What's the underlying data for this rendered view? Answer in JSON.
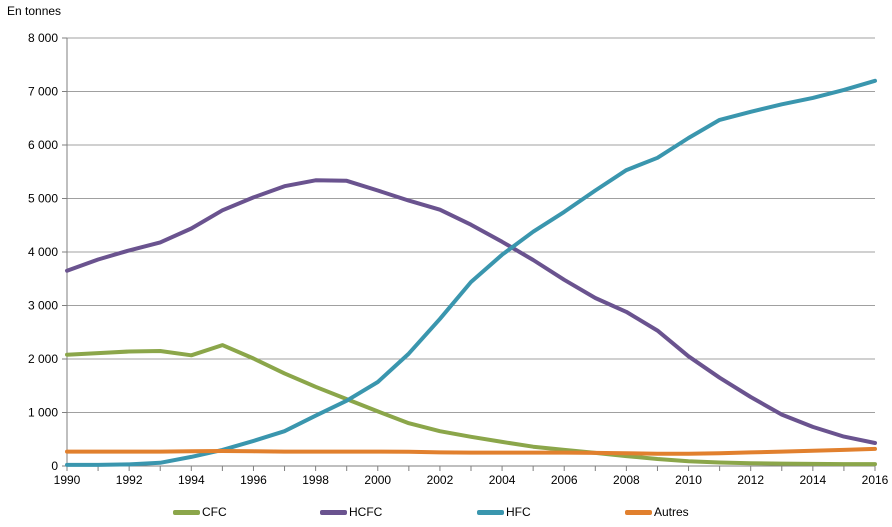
{
  "chart_data": {
    "type": "line",
    "title": "",
    "unit_label": "En tonnes",
    "xlabel": "",
    "ylabel": "En tonnes",
    "x": [
      1990,
      1991,
      1992,
      1993,
      1994,
      1995,
      1996,
      1997,
      1998,
      1999,
      2000,
      2001,
      2002,
      2003,
      2004,
      2005,
      2006,
      2007,
      2008,
      2009,
      2010,
      2011,
      2012,
      2013,
      2014,
      2015,
      2016
    ],
    "x_tick_labels": [
      "1990",
      "1992",
      "1994",
      "1996",
      "1998",
      "2000",
      "2002",
      "2004",
      "2006",
      "2008",
      "2010",
      "2012",
      "2014",
      "2016"
    ],
    "y_ticks": [
      0,
      1000,
      2000,
      3000,
      4000,
      5000,
      6000,
      7000,
      8000
    ],
    "y_tick_labels": [
      "0",
      "1 000",
      "2 000",
      "3 000",
      "4 000",
      "5 000",
      "6 000",
      "7 000",
      "8 000"
    ],
    "xlim": [
      1990,
      2016
    ],
    "ylim": [
      0,
      8000
    ],
    "grid": "horizontal",
    "legend_position": "bottom",
    "series": [
      {
        "name": "CFC",
        "color": "#8BA64A",
        "values": [
          2080,
          2110,
          2140,
          2150,
          2070,
          2260,
          2010,
          1730,
          1480,
          1250,
          1020,
          800,
          650,
          545,
          450,
          360,
          300,
          245,
          185,
          130,
          90,
          65,
          50,
          45,
          40,
          35,
          35
        ]
      },
      {
        "name": "HCFC",
        "color": "#6A538F",
        "values": [
          3650,
          3860,
          4030,
          4180,
          4440,
          4780,
          5020,
          5230,
          5340,
          5330,
          5150,
          4960,
          4790,
          4510,
          4190,
          3850,
          3480,
          3140,
          2880,
          2530,
          2050,
          1650,
          1290,
          960,
          730,
          550,
          430
        ]
      },
      {
        "name": "HFC",
        "color": "#3A96AE",
        "values": [
          20,
          20,
          30,
          60,
          170,
          300,
          470,
          650,
          940,
          1220,
          1570,
          2100,
          2750,
          3440,
          3950,
          4380,
          4750,
          5150,
          5530,
          5760,
          6130,
          6470,
          6620,
          6760,
          6880,
          7030,
          7200
        ]
      },
      {
        "name": "Autres",
        "color": "#E1802E",
        "values": [
          270,
          270,
          270,
          270,
          275,
          280,
          275,
          270,
          270,
          270,
          270,
          265,
          255,
          250,
          250,
          250,
          250,
          245,
          240,
          230,
          230,
          240,
          255,
          270,
          285,
          300,
          320
        ]
      }
    ]
  },
  "style": {
    "grid_color": "#A0A0A0",
    "axis_color": "#7F7F7F",
    "text_color": "#000000",
    "background": "#FFFFFF",
    "legend_item_lefts": [
      173,
      320,
      477,
      625
    ]
  }
}
